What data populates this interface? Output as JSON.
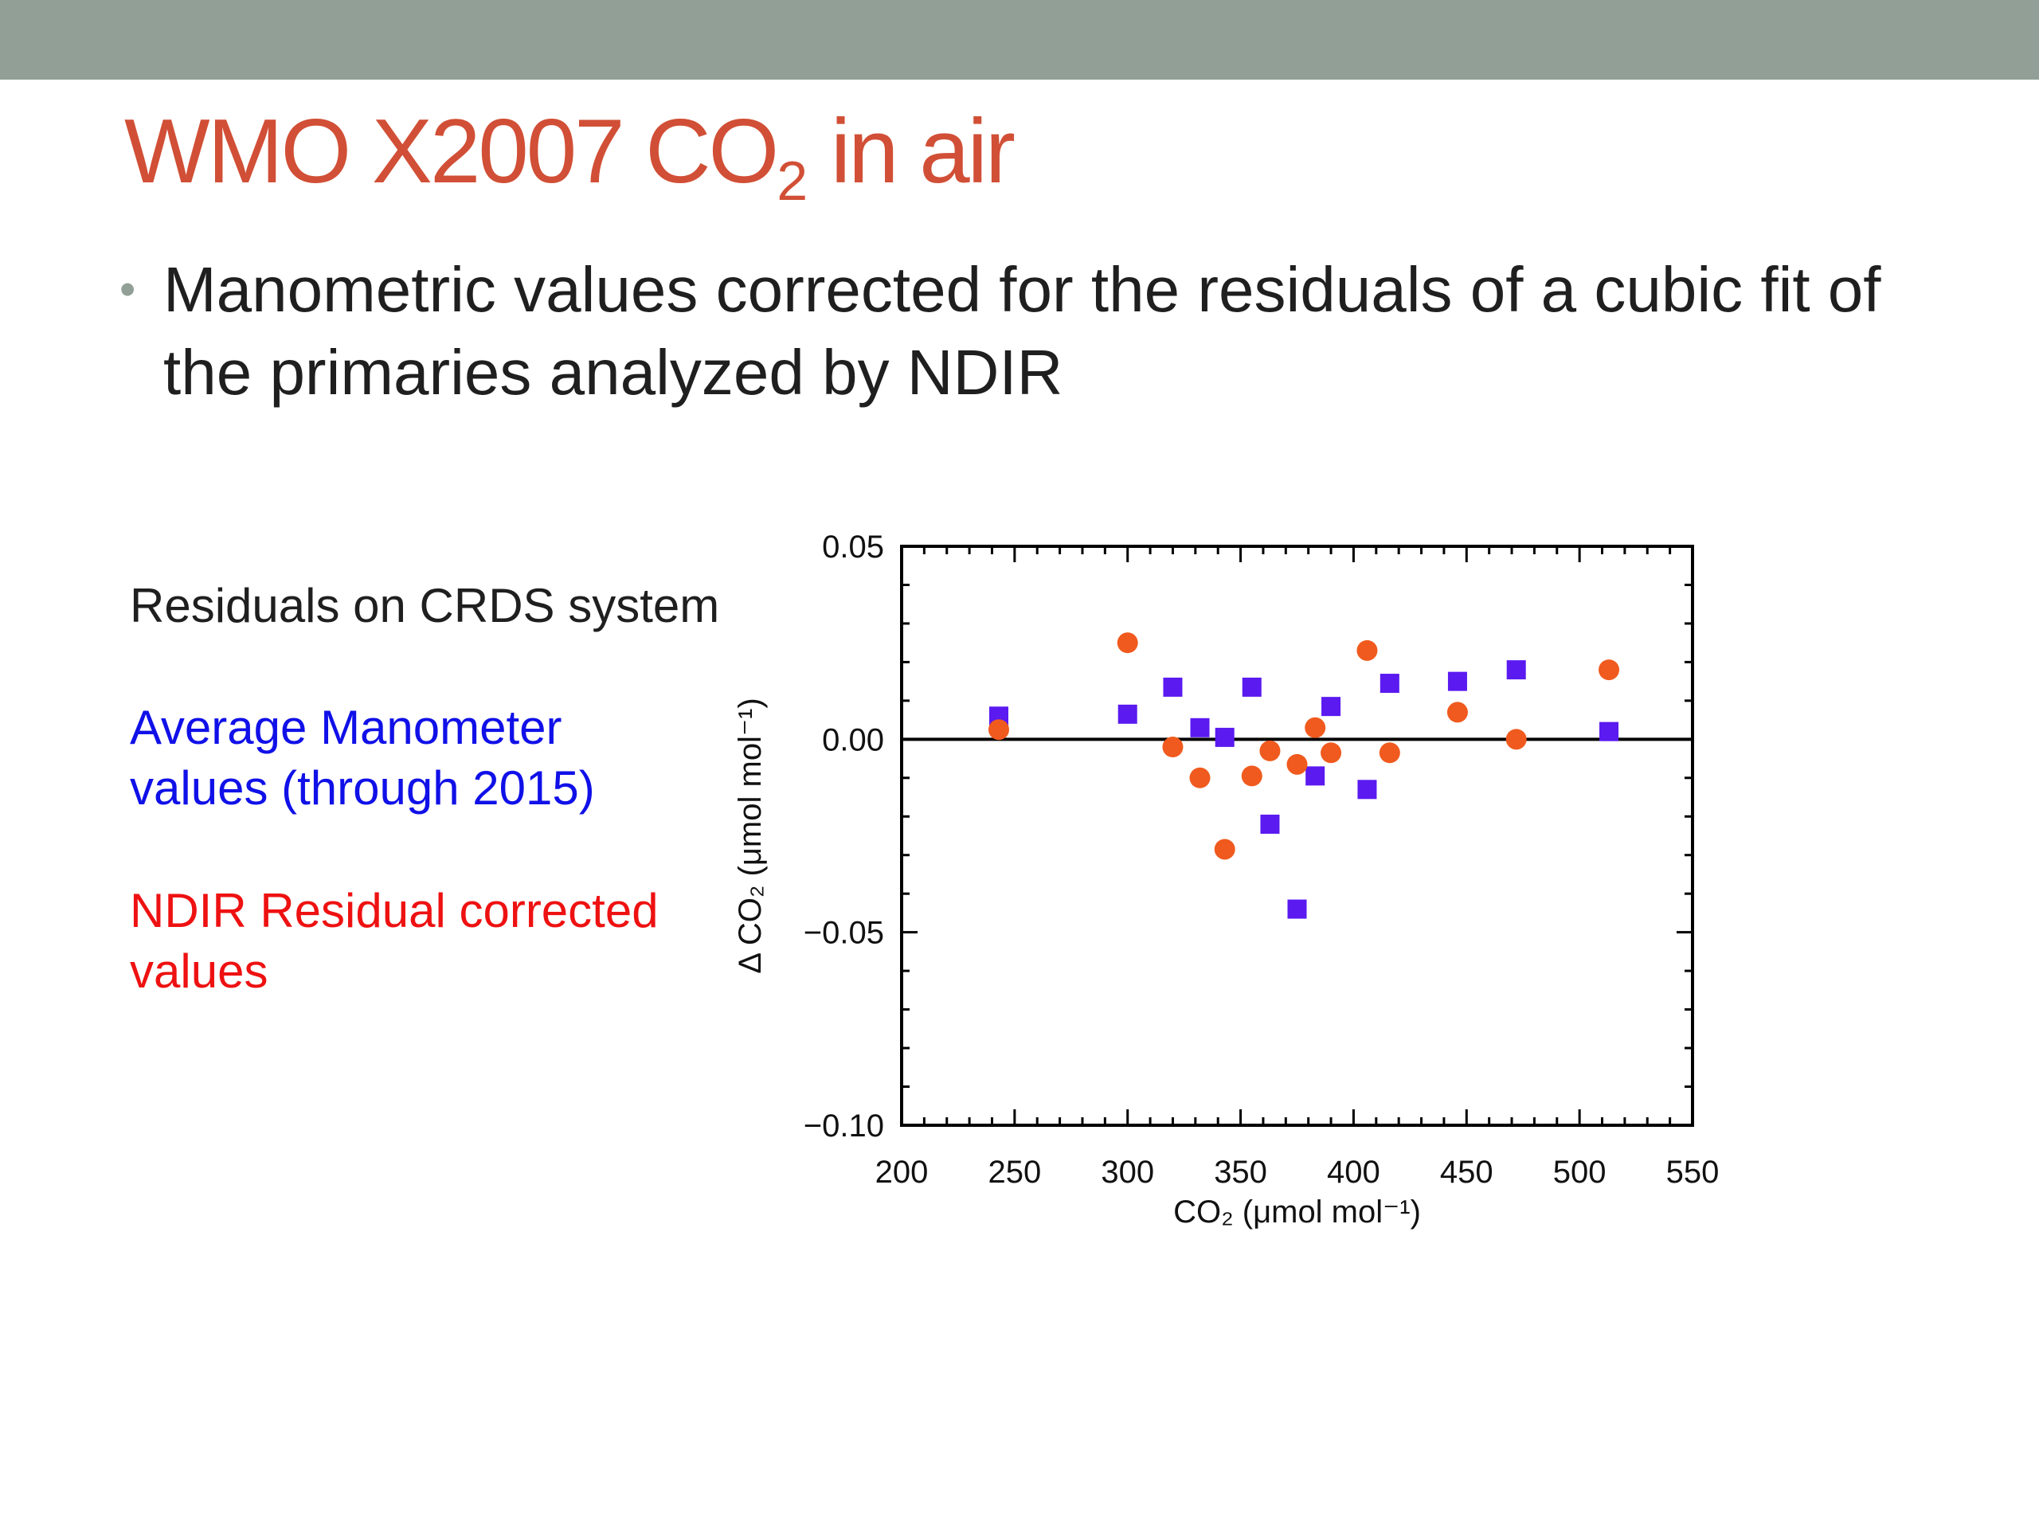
{
  "slide": {
    "title_main": "WMO X2007 CO",
    "title_sub": "2",
    "title_suffix": " in air",
    "bullet_text": "Manometric values corrected for the residuals of a cubic fit of the primaries analyzed by NDIR",
    "label_residuals": "Residuals on CRDS system",
    "label_manometer": "Average Manometer values (through 2015)",
    "label_ndir": "NDIR Residual corrected values"
  },
  "colors": {
    "top_bar": "#919f97",
    "title": "#d14f36",
    "manometer": "#5a1af0",
    "ndir": "#f05a1e"
  },
  "chart_data": {
    "type": "scatter",
    "title": "",
    "xlabel": "CO₂ (μmol mol⁻¹)",
    "ylabel": "Δ CO₂ (μmol mol⁻¹)",
    "xlim": [
      200,
      550
    ],
    "ylim": [
      -0.1,
      0.05
    ],
    "xticks": [
      200,
      250,
      300,
      350,
      400,
      450,
      500,
      550
    ],
    "yticks": [
      -0.1,
      -0.05,
      0.0,
      0.05
    ],
    "xtick_labels": [
      "200",
      "250",
      "300",
      "350",
      "400",
      "450",
      "500",
      "550"
    ],
    "ytick_labels": [
      "−0.10",
      "−0.05",
      "0.00",
      "0.05"
    ],
    "zero_line": true,
    "grid": false,
    "series": [
      {
        "marker": "square",
        "color": "#5a1af0",
        "points": [
          [
            243,
            0.006
          ],
          [
            300,
            0.0065
          ],
          [
            320,
            0.0135
          ],
          [
            332,
            0.003
          ],
          [
            343,
            0.0005
          ],
          [
            355,
            0.0135
          ],
          [
            363,
            -0.022
          ],
          [
            375,
            -0.044
          ],
          [
            383,
            -0.0095
          ],
          [
            390,
            0.0085
          ],
          [
            406,
            -0.013
          ],
          [
            416,
            0.0145
          ],
          [
            446,
            0.015
          ],
          [
            472,
            0.018
          ],
          [
            513,
            0.002
          ]
        ]
      },
      {
        "marker": "circle",
        "color": "#f05a1e",
        "points": [
          [
            243,
            0.0025
          ],
          [
            300,
            0.025
          ],
          [
            320,
            -0.002
          ],
          [
            332,
            -0.01
          ],
          [
            343,
            -0.0285
          ],
          [
            355,
            -0.0095
          ],
          [
            363,
            -0.003
          ],
          [
            375,
            -0.0065
          ],
          [
            383,
            0.003
          ],
          [
            390,
            -0.0035
          ],
          [
            406,
            0.023
          ],
          [
            416,
            -0.0035
          ],
          [
            446,
            0.007
          ],
          [
            472,
            0.0
          ],
          [
            513,
            0.018
          ]
        ]
      }
    ]
  }
}
